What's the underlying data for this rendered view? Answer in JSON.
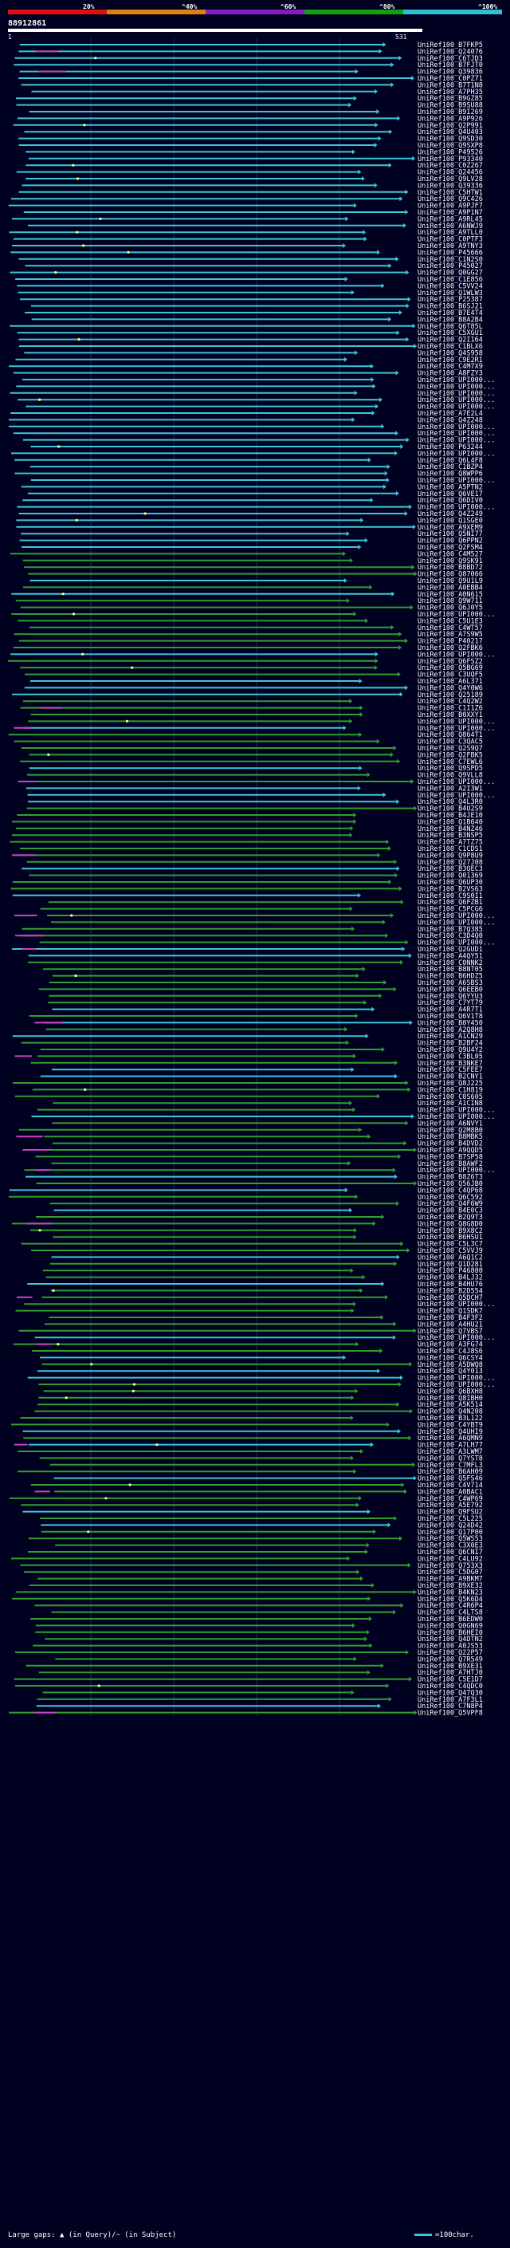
{
  "scale": {
    "labels": [
      "20%",
      "^40%",
      "^60%",
      "^80%",
      "^100%"
    ],
    "colors": [
      "#e01010",
      "#e08010",
      "#8020c0",
      "#10a010",
      "#30c0d0"
    ]
  },
  "query": {
    "id": "88912861",
    "start": "1",
    "end": "531"
  },
  "hits": [
    "UniRef100_B7FKP5",
    "UniRef100_Q24076",
    "UniRef100_C6TJD3",
    "UniRef100_B7FJT0",
    "UniRef100_Q39836",
    "UniRef100_C0PZ71",
    "UniRef100_B7T1N8",
    "UniRef100_A7PH35",
    "UniRef100_B9GZ85",
    "UniRef100_B9SU88",
    "UniRef100_B9I269",
    "UniRef100_A9P926",
    "UniRef100_Q2P991",
    "UniRef100_Q4U403",
    "UniRef100_Q9SD30",
    "UniRef100_Q9SXP8",
    "UniRef100_P49526",
    "UniRef100_P93340",
    "UniRef100_C0Z267",
    "UniRef100_Q24456",
    "UniRef100_Q9LV28",
    "UniRef100_Q39336",
    "UniRef100_C5HTW1",
    "UniRef100_Q9C426",
    "UniRef100_A9PJF7",
    "UniRef100_A9P1N7",
    "UniRef100_A9RL45",
    "UniRef100_A6NWJ9",
    "UniRef100_A9TLL0",
    "UniRef100_C0PTF3",
    "UniRef100_A9TNY3",
    "UniRef100_P45666",
    "UniRef100_C1N2S0",
    "UniRef100_P45027",
    "UniRef100_Q0GG27",
    "UniRef100_C1E856",
    "UniRef100_C5VV24",
    "UniRef100_Q1WLW3",
    "UniRef100_P25387",
    "UniRef100_B6SJ21",
    "UniRef100_B7E4T4",
    "UniRef100_B8A2B4",
    "UniRef100_Q6T85L",
    "UniRef100_C5XGU1",
    "UniRef100_Q2I164",
    "UniRef100_C1BLX6",
    "UniRef100_Q4S958",
    "UniRef100_C9E2R1",
    "UniRef100_C4M7X9",
    "UniRef100_A8FZY3",
    "UniRef100_UPI000...",
    "UniRef100_UPI000...",
    "UniRef100_UPI000...",
    "UniRef100_UPI000...",
    "UniRef100_UPI000...",
    "UniRef100_A7E2L4",
    "UniRef100_Q4Z248",
    "UniRef100_UPI000...",
    "UniRef100_UPI000...",
    "UniRef100_UPI000...",
    "UniRef100_P63244",
    "UniRef100_UPI000...",
    "UniRef100_Q6L4F8",
    "UniRef100_C1BZP4",
    "UniRef100_Q8WPP6",
    "UniRef100_UPI000...",
    "UniRef100_A5PTN2",
    "UniRef100_Q6VE17",
    "UniRef100_Q6DIV0",
    "UniRef100_UPI000...",
    "UniRef100_Q4Z249",
    "UniRef100_Q1SGE0",
    "UniRef100_A9XEM9",
    "UniRef100_Q5NI77",
    "UniRef100_Q6PPN2",
    "UniRef100_Q2FSM4",
    "UniRef100_C4M527",
    "UniRef100_Q9SK91",
    "UniRef100_B8BD72",
    "UniRef100_Q87066",
    "UniRef100_Q9U1L9",
    "UniRef100_A0EBB4",
    "UniRef100_A0N615",
    "UniRef100_Q9W711",
    "UniRef100_Q6J0Y5",
    "UniRef100_UPI000...",
    "UniRef100_C5U1E3",
    "UniRef100_C4WT57",
    "UniRef100_A7S9W5",
    "UniRef100_P40217",
    "UniRef100_Q2FBK6",
    "UniRef100_UPI000...",
    "UniRef100_Q6FSZ2",
    "UniRef100_Q5BG69",
    "UniRef100_C3UQF5",
    "UniRef100_A6L371",
    "UniRef100_Q4Y0W6",
    "UniRef100_Q25189",
    "UniRef100_C4Q2W2",
    "UniRef100_C1I1Z6",
    "UniRef100_B0XXY1",
    "UniRef100_UPI000...",
    "UniRef100_UPI000...",
    "UniRef100_Q864T1",
    "UniRef100_C3QAC5",
    "UniRef100_Q2S9Q7",
    "UniRef100_Q2FBK5",
    "UniRef100_C7EWL6",
    "UniRef100_Q9SPD5",
    "UniRef100_Q9VLL8",
    "UniRef100_UPI000...",
    "UniRef100_A2I3W1",
    "UniRef100_UPI000...",
    "UniRef100_Q4L3R0",
    "UniRef100_B4U2S9",
    "UniRef100_B4JE10",
    "UniRef100_Q1B640",
    "UniRef100_B4NZ46",
    "UniRef100_B3NSP5",
    "UniRef100_A7TZ75",
    "UniRef100_C1CDS1",
    "UniRef100_Q9P8U9",
    "UniRef100_Q27J08",
    "UniRef100_B3QEC3",
    "UniRef100_Q01369",
    "UniRef100_Q6UP30",
    "UniRef100_B2VS63",
    "UniRef100_C9S0I1",
    "UniRef100_Q6FZB1",
    "UniRef100_C5PCG6",
    "UniRef100_UPI000...",
    "UniRef100_UPI000...",
    "UniRef100_B7Q385",
    "UniRef100_C3D4Q0",
    "UniRef100_UPI000...",
    "UniRef100_Q2GUD1",
    "UniRef100_A4QY51",
    "UniRef100_C0NNK2",
    "UniRef100_B8NT05",
    "UniRef100_B6HDZ5",
    "UniRef100_A6SBS3",
    "UniRef100_Q6EEB0",
    "UniRef100_Q6YYU3",
    "UniRef100_C7YT79",
    "UniRef100_A4R7T1",
    "UniRef100_Q6V1T8",
    "UniRef100_B0Y450",
    "UniRef100_A2Q8H8",
    "UniRef100_A1CN29",
    "UniRef100_B2BF24",
    "UniRef100_Q9U4Y2",
    "UniRef100_C3BL05",
    "UniRef100_B3NKE7",
    "UniRef100_C5FEE7",
    "UniRef100_B2CNY1",
    "UniRef100_Q8J225",
    "UniRef100_C1H819",
    "UniRef100_C0S605",
    "UniRef100_A1CIN8",
    "UniRef100_UPI000...",
    "UniRef100_UPI000...",
    "UniRef100_A6NVY1",
    "UniRef100_Q2M8B0",
    "UniRef100_B8MBK5",
    "UniRef100_B4DVD2",
    "UniRef100_A9QQD5",
    "UniRef100_B7SP58",
    "UniRef100_B8AWF2",
    "UniRef100_UPI000...",
    "UniRef100_B8Z6T3",
    "UniRef100_Q56JB0",
    "UniRef100_C4QP68",
    "UniRef100_Q6C592",
    "UniRef100_Q4F6W9",
    "UniRef100_B4E0C3",
    "UniRef100_B2Q9T3",
    "UniRef100_Q8G8D0",
    "UniRef100_B9X8C2",
    "UniRef100_B6HSU1",
    "UniRef100_C5L3C7",
    "UniRef100_C5VVJ9",
    "UniRef100_A6Q1C2",
    "UniRef100_Q1D281",
    "UniRef100_P46800",
    "UniRef100_B4LJ32",
    "UniRef100_B4HU76",
    "UniRef100_B2D554",
    "UniRef100_Q5DCH7",
    "UniRef100_UPI000...",
    "UniRef100_Q1SDK7",
    "UniRef100_B4F3F2",
    "UniRef100_A4HU21",
    "UniRef100_Q7VBS7",
    "UniRef100_UPI000...",
    "UniRef100_A3FG74",
    "UniRef100_C4J8S6",
    "UniRef100_Q6CSY4",
    "UniRef100_A5DWQ8",
    "UniRef100_Q4Y013",
    "UniRef100_UPI000...",
    "UniRef100_UPI000...",
    "UniRef100_Q6BXH8",
    "UniRef100_Q8IBH0",
    "UniRef100_A5K514",
    "UniRef100_Q4N208",
    "UniRef100_B3L122",
    "UniRef100_C4YBT9",
    "UniRef100_Q4UHI9",
    "UniRef100_A6QMN9",
    "UniRef100_A7LH77",
    "UniRef100_A3LWM7",
    "UniRef100_Q7YST8",
    "UniRef100_C7MFL3",
    "UniRef100_B6AH09",
    "UniRef100_Q5FS46",
    "UniRef100_C4V714",
    "UniRef100_A0BAC1",
    "UniRef100_C4WP69",
    "UniRef100_A5E792",
    "UniRef100_Q9FSU2",
    "UniRef100_C5L225",
    "UniRef100_Q24D42",
    "UniRef100_Q17P00",
    "UniRef100_Q5WS53",
    "UniRef100_C3X0E3",
    "UniRef100_Q6CNI7",
    "UniRef100_C4LU92",
    "UniRef100_Q753X3",
    "UniRef100_C5DG07",
    "UniRef100_A9BKM7",
    "UniRef100_B9XE32",
    "UniRef100_B4KN23",
    "UniRef100_Q5K6D4",
    "UniRef100_C4R6P4",
    "UniRef100_C4LTS8",
    "UniRef100_B6EDW0",
    "UniRef100_Q0GN69",
    "UniRef100_B6HEI0",
    "UniRef100_Q4DTN2",
    "UniRef100_A0JS53",
    "UniRef100_Q22P57",
    "UniRef100_Q7R549",
    "UniRef100_B9XE31",
    "UniRef100_A7HTJ0",
    "UniRef100_C5E1D7",
    "UniRef100_C4QDC0",
    "UniRef100_Q47Q30",
    "UniRef100_A7F3L1",
    "UniRef100_C7N8P4",
    "UniRef100_Q5VPF8"
  ],
  "legend": {
    "left": "Large gaps: ▲ (in Query)/~ (in Subject)",
    "right": "=100char."
  }
}
